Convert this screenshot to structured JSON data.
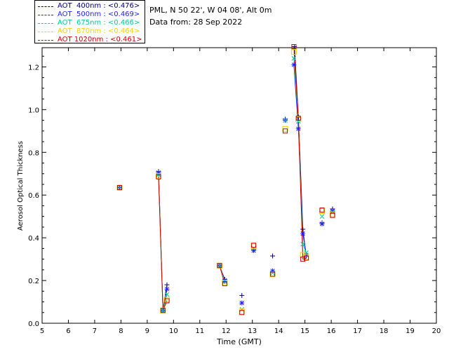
{
  "header": {
    "station": "PML, N 50 22', W 04 08', Alt 0m",
    "date": "Data from: 28 Sep 2022"
  },
  "legend": [
    {
      "label": "AOT  400nm : <0.476>",
      "color": "#000080"
    },
    {
      "label": "AOT  500nm : <0.469>",
      "color": "#1e1eff"
    },
    {
      "label": "AOT  675nm : <0.466>",
      "color": "#00cc99"
    },
    {
      "label": "AOT  870nm : <0.464>",
      "color": "#ffcc00"
    },
    {
      "label": "AOT 1020nm : <0.461>",
      "color": "#cc0000"
    }
  ],
  "chart_data": {
    "type": "scatter",
    "title": "",
    "xlabel": "Time (GMT)",
    "ylabel": "Aerosol Optical Thickness",
    "xlim": [
      5,
      20
    ],
    "ylim": [
      0.0,
      1.29
    ],
    "xticks": [
      5,
      6,
      7,
      8,
      9,
      10,
      11,
      12,
      13,
      14,
      15,
      16,
      17,
      18,
      19,
      20
    ],
    "yticks": [
      0.0,
      0.2,
      0.4,
      0.6,
      0.8,
      1.0,
      1.2
    ],
    "ytick_labels": [
      "0.0",
      "0.2",
      "0.4",
      "0.6",
      "0.8",
      "1.0",
      "1.2"
    ],
    "markers": {
      "400nm": "plus",
      "500nm": "asterisk",
      "675nm": "x",
      "870nm": "square",
      "1020nm": "square"
    },
    "series": [
      {
        "name": "AOT 400nm",
        "color": "#000080",
        "points": [
          [
            7.95,
            0.635
          ],
          [
            9.43,
            0.71
          ],
          [
            9.6,
            0.06
          ],
          [
            9.75,
            0.18
          ],
          [
            11.75,
            0.27
          ],
          [
            11.95,
            0.205
          ],
          [
            12.6,
            0.13
          ],
          [
            13.05,
            0.345
          ],
          [
            13.77,
            0.315
          ],
          [
            14.25,
            0.955
          ],
          [
            14.6,
            1.295
          ],
          [
            14.75,
            0.965
          ],
          [
            14.92,
            0.44
          ],
          [
            15.05,
            0.315
          ],
          [
            15.65,
            0.47
          ],
          [
            16.05,
            0.535
          ]
        ]
      },
      {
        "name": "AOT 500nm",
        "color": "#1e1eff",
        "points": [
          [
            7.95,
            0.635
          ],
          [
            9.43,
            0.705
          ],
          [
            9.6,
            0.06
          ],
          [
            9.75,
            0.16
          ],
          [
            11.75,
            0.27
          ],
          [
            11.95,
            0.2
          ],
          [
            12.6,
            0.095
          ],
          [
            13.05,
            0.34
          ],
          [
            13.77,
            0.245
          ],
          [
            14.25,
            0.95
          ],
          [
            14.58,
            1.21
          ],
          [
            14.75,
            0.91
          ],
          [
            14.92,
            0.42
          ],
          [
            15.05,
            0.32
          ],
          [
            15.65,
            0.465
          ],
          [
            16.05,
            0.525
          ]
        ]
      },
      {
        "name": "AOT 675nm",
        "color": "#00cc99",
        "points": [
          [
            7.95,
            0.635
          ],
          [
            9.43,
            0.695
          ],
          [
            9.6,
            0.06
          ],
          [
            9.75,
            0.135
          ],
          [
            11.75,
            0.27
          ],
          [
            11.95,
            0.195
          ],
          [
            12.6,
            0.065
          ],
          [
            13.05,
            0.35
          ],
          [
            13.77,
            0.235
          ],
          [
            14.25,
            0.95
          ],
          [
            14.58,
            1.24
          ],
          [
            14.75,
            0.945
          ],
          [
            14.92,
            0.37
          ],
          [
            15.05,
            0.33
          ],
          [
            15.65,
            0.5
          ],
          [
            16.05,
            0.52
          ]
        ]
      },
      {
        "name": "AOT 870nm",
        "color": "#ffcc00",
        "points": [
          [
            7.95,
            0.635
          ],
          [
            9.43,
            0.69
          ],
          [
            9.6,
            0.06
          ],
          [
            9.75,
            0.11
          ],
          [
            11.75,
            0.27
          ],
          [
            11.95,
            0.19
          ],
          [
            12.6,
            0.055
          ],
          [
            13.05,
            0.36
          ],
          [
            13.77,
            0.23
          ],
          [
            14.25,
            0.91
          ],
          [
            14.58,
            1.27
          ],
          [
            14.75,
            0.955
          ],
          [
            14.92,
            0.32
          ],
          [
            15.05,
            0.31
          ],
          [
            15.65,
            0.525
          ],
          [
            16.05,
            0.51
          ]
        ]
      },
      {
        "name": "AOT 1020nm",
        "color": "#cc0000",
        "points": [
          [
            7.95,
            0.635
          ],
          [
            9.43,
            0.685
          ],
          [
            9.6,
            0.06
          ],
          [
            9.75,
            0.105
          ],
          [
            11.75,
            0.27
          ],
          [
            11.95,
            0.185
          ],
          [
            12.6,
            0.05
          ],
          [
            13.05,
            0.365
          ],
          [
            13.77,
            0.23
          ],
          [
            14.25,
            0.9
          ],
          [
            14.58,
            1.295
          ],
          [
            14.75,
            0.96
          ],
          [
            14.92,
            0.3
          ],
          [
            15.05,
            0.305
          ],
          [
            15.65,
            0.53
          ],
          [
            16.05,
            0.505
          ]
        ]
      }
    ],
    "connected_segments": [
      [
        1,
        3
      ],
      [
        4,
        5
      ],
      [
        10,
        13
      ]
    ]
  }
}
